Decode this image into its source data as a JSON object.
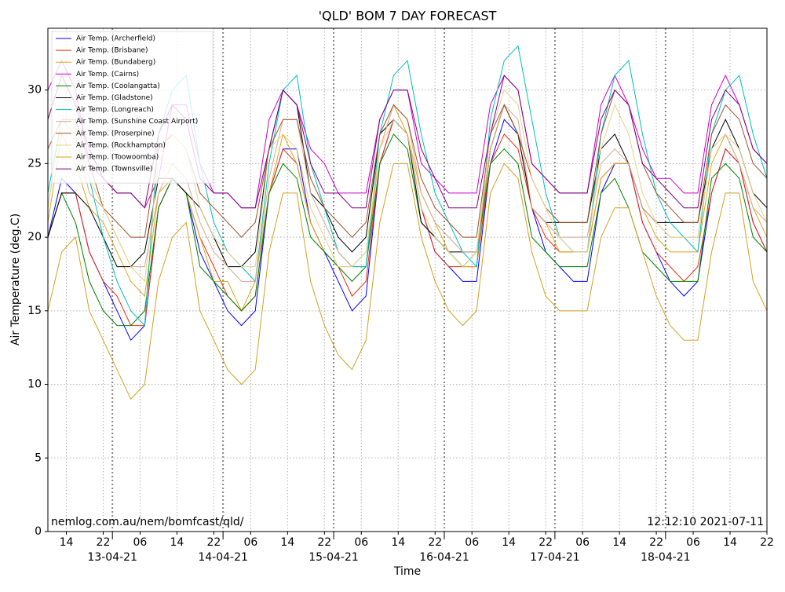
{
  "chart_data": {
    "type": "line",
    "title": "'QLD' BOM 7 DAY FORECAST",
    "xlabel": "Time",
    "ylabel": "Air Temperature (deg.C)",
    "annotations": [
      "nemlog.com.au/nem/bomfcast/qld/",
      "12:12:10 2021-07-11"
    ],
    "x": [
      10,
      13,
      16,
      19,
      22,
      25,
      28,
      31,
      34,
      37,
      40,
      43,
      46,
      49,
      52,
      55,
      58,
      61,
      64,
      67,
      70,
      73,
      76,
      79,
      82,
      85,
      88,
      91,
      94,
      97,
      100,
      103,
      106,
      109,
      112,
      115,
      118,
      121,
      124,
      127,
      130,
      133,
      136,
      139,
      142,
      145,
      148,
      151,
      154,
      157,
      160,
      163,
      166
    ],
    "xlim": [
      10,
      166
    ],
    "xticks": [
      14,
      22,
      {
        "value": 30,
        "label": "06"
      },
      {
        "value": 38,
        "label": "14"
      },
      {
        "value": 46,
        "label": "22"
      },
      {
        "value": 54,
        "label": "06"
      },
      {
        "value": 62,
        "label": "14"
      },
      {
        "value": 70,
        "label": "22"
      },
      {
        "value": 78,
        "label": "06"
      },
      {
        "value": 86,
        "label": "14"
      },
      {
        "value": 94,
        "label": "22"
      },
      {
        "value": 102,
        "label": "06"
      },
      {
        "value": 110,
        "label": "14"
      },
      {
        "value": 118,
        "label": "22"
      },
      {
        "value": 126,
        "label": "06"
      },
      {
        "value": 134,
        "label": "14"
      },
      {
        "value": 142,
        "label": "22"
      },
      {
        "value": 150,
        "label": "06"
      },
      {
        "value": 158,
        "label": "14"
      },
      {
        "value": 166,
        "label": "22"
      }
    ],
    "date_ticks": [
      {
        "value": 24,
        "label": "13-04-21"
      },
      {
        "value": 48,
        "label": "14-04-21"
      },
      {
        "value": 72,
        "label": "15-04-21"
      },
      {
        "value": 96,
        "label": "16-04-21"
      },
      {
        "value": 120,
        "label": "17-04-21"
      },
      {
        "value": 144,
        "label": "18-04-21"
      }
    ],
    "ylim": [
      0,
      34.2
    ],
    "yticks": [
      0,
      5,
      10,
      15,
      20,
      25,
      30
    ],
    "grid": true,
    "legend": "upper left",
    "series": [
      {
        "name": "Air Temp. (Archerfield)",
        "color": "#0000ff",
        "values": [
          20,
          24,
          23,
          19,
          17,
          15,
          13,
          14,
          22,
          24,
          23,
          19,
          17,
          15,
          14,
          15,
          23,
          26,
          26,
          21,
          19,
          17,
          15,
          16,
          25,
          28,
          27,
          22,
          19,
          18,
          17,
          17,
          25,
          28,
          27,
          22,
          19,
          18,
          17,
          17,
          23,
          25,
          25,
          21,
          19,
          17,
          16,
          17,
          23,
          26,
          25,
          21,
          19
        ]
      },
      {
        "name": "Air Temp. (Brisbane)",
        "color": "#ee2a10",
        "values": [
          20,
          23,
          23,
          19,
          17,
          16,
          14,
          14,
          22,
          24,
          23,
          20,
          18,
          16,
          15,
          16,
          23,
          26,
          25,
          21,
          19,
          18,
          16,
          17,
          25,
          28,
          27,
          22,
          19,
          18,
          18,
          18,
          25,
          27,
          26,
          22,
          20,
          19,
          19,
          19,
          24,
          25,
          25,
          21,
          19,
          18,
          17,
          18,
          23,
          26,
          25,
          21,
          19
        ]
      },
      {
        "name": "Air Temp. (Bundaberg)",
        "color": "#dba81c",
        "values": [
          21,
          27,
          25,
          22,
          21,
          19,
          17,
          16,
          23,
          24,
          23,
          20,
          17,
          17,
          15,
          17,
          23,
          27,
          25,
          21,
          19,
          18,
          18,
          18,
          26,
          29,
          27,
          23,
          21,
          19,
          18,
          18,
          26,
          29,
          27,
          22,
          21,
          19,
          19,
          19,
          24,
          25,
          25,
          22,
          20,
          19,
          19,
          19,
          25,
          27,
          25,
          22,
          20
        ]
      },
      {
        "name": "Air Temp. (Cairns)",
        "color": "#cc00cc",
        "values": [
          30,
          32,
          30,
          25,
          24,
          23,
          23,
          22,
          24,
          29,
          29,
          25,
          23,
          23,
          22,
          22,
          28,
          30,
          29,
          26,
          25,
          23,
          23,
          23,
          28,
          30,
          30,
          25,
          24,
          23,
          23,
          23,
          29,
          31,
          30,
          25,
          24,
          23,
          23,
          23,
          29,
          31,
          29,
          26,
          24,
          24,
          23,
          23,
          29,
          31,
          29,
          26,
          25
        ]
      },
      {
        "name": "Air Temp. (Coolangatta)",
        "color": "#008000",
        "values": [
          20,
          23,
          21,
          17,
          15,
          14,
          14,
          15,
          22,
          24,
          23,
          18,
          17,
          16,
          15,
          16,
          23,
          25,
          24,
          20,
          19,
          18,
          17,
          18,
          25,
          27,
          26,
          21,
          20,
          19,
          18,
          19,
          25,
          26,
          25,
          20,
          19,
          18,
          18,
          18,
          23,
          24,
          22,
          19,
          18,
          17,
          17,
          17,
          24,
          25,
          24,
          20,
          19
        ]
      },
      {
        "name": "Air Temp. (Gladstone)",
        "color": "#000000",
        "values": [
          20,
          23,
          23,
          22,
          20,
          18,
          18,
          19,
          24,
          24,
          23,
          22,
          20,
          18,
          18,
          19,
          26,
          30,
          29,
          23,
          22,
          20,
          19,
          20,
          27,
          28,
          27,
          21,
          20,
          19,
          19,
          19,
          26,
          29,
          27,
          22,
          21,
          21,
          21,
          21,
          26,
          27,
          25,
          22,
          21,
          21,
          21,
          21,
          26,
          28,
          26,
          23,
          22
        ]
      },
      {
        "name": "Air Temp. (Longreach)",
        "color": "#00bfbf",
        "values": [
          23,
          28,
          27,
          24,
          20,
          17,
          15,
          14,
          27,
          30,
          31,
          25,
          21,
          19,
          18,
          17,
          25,
          30,
          31,
          25,
          22,
          19,
          18,
          18,
          27,
          31,
          32,
          27,
          23,
          21,
          19,
          18,
          28,
          32,
          33,
          28,
          23,
          20,
          19,
          19,
          27,
          31,
          32,
          27,
          23,
          21,
          20,
          19,
          27,
          30,
          31,
          27,
          24
        ]
      },
      {
        "name": "Air Temp. (Sunshine Coast Airport)",
        "color": "#d8a890",
        "values": [
          22,
          28,
          27,
          23,
          22,
          20,
          18,
          18,
          23,
          25,
          24,
          21,
          19,
          18,
          17,
          17,
          24,
          28,
          28,
          23,
          21,
          19,
          18,
          19,
          26,
          29,
          28,
          23,
          21,
          20,
          19,
          19,
          26,
          29,
          28,
          22,
          21,
          20,
          20,
          20,
          25,
          26,
          25,
          22,
          21,
          20,
          20,
          20,
          26,
          27,
          25,
          22,
          21
        ]
      },
      {
        "name": "Air Temp. (Proserpine)",
        "color": "#a0522d",
        "values": [
          26,
          28,
          28,
          25,
          22,
          21,
          20,
          20,
          26,
          27,
          26,
          23,
          22,
          21,
          20,
          21,
          26,
          28,
          28,
          24,
          22,
          21,
          20,
          21,
          27,
          29,
          28,
          24,
          22,
          21,
          20,
          20,
          27,
          29,
          27,
          24,
          22,
          21,
          21,
          21,
          27,
          30,
          29,
          25,
          23,
          22,
          21,
          21,
          27,
          29,
          28,
          25,
          24
        ]
      },
      {
        "name": "Air Temp. (Rockhampton)",
        "color": "#e3d38a",
        "values": [
          22,
          28,
          27,
          24,
          22,
          20,
          18,
          17,
          25,
          27,
          26,
          22,
          20,
          19,
          18,
          18,
          26,
          27,
          26,
          22,
          20,
          18,
          18,
          19,
          26,
          28,
          27,
          22,
          20,
          19,
          18,
          19,
          27,
          30,
          29,
          24,
          22,
          20,
          19,
          19,
          26,
          29,
          27,
          23,
          21,
          20,
          20,
          20,
          26,
          27,
          26,
          23,
          21
        ]
      },
      {
        "name": "Air Temp. (Toowoomba)",
        "color": "#d4a020",
        "values": [
          15,
          19,
          20,
          15,
          13,
          11,
          9,
          10,
          17,
          20,
          21,
          15,
          13,
          11,
          10,
          11,
          19,
          23,
          23,
          17,
          14,
          12,
          11,
          13,
          21,
          25,
          25,
          20,
          17,
          15,
          14,
          15,
          23,
          25,
          24,
          19,
          16,
          15,
          15,
          15,
          20,
          22,
          22,
          19,
          16,
          14,
          13,
          13,
          19,
          23,
          23,
          17,
          15
        ]
      },
      {
        "name": "Air Temp. (Townsville)",
        "color": "#800080",
        "values": [
          28,
          31,
          29,
          26,
          24,
          23,
          23,
          22,
          27,
          29,
          28,
          24,
          23,
          23,
          22,
          22,
          26,
          30,
          29,
          25,
          23,
          23,
          22,
          22,
          28,
          30,
          30,
          26,
          24,
          22,
          22,
          22,
          27,
          31,
          30,
          25,
          24,
          23,
          23,
          23,
          28,
          30,
          29,
          25,
          24,
          23,
          22,
          22,
          28,
          30,
          29,
          26,
          25
        ]
      }
    ]
  }
}
